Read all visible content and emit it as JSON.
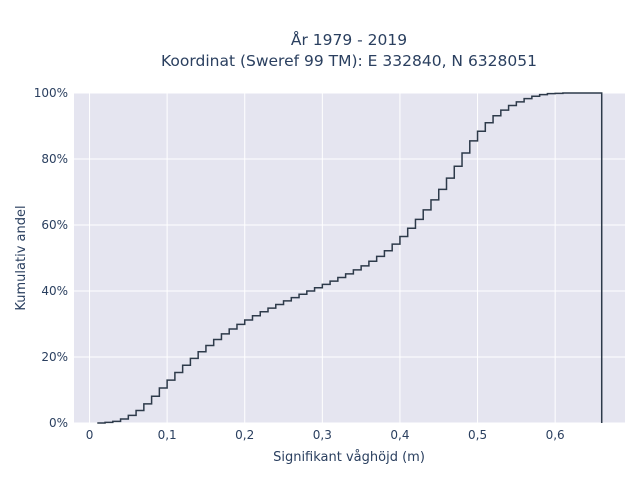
{
  "chart_data": {
    "type": "line",
    "line_shape": "step",
    "title": "År 1979 - 2019",
    "subtitle": "Koordinat (Sweref 99 TM): E 332840, N 6328051",
    "xlabel": "Signifikant våghöjd (m)",
    "ylabel": "Kumulativ andel",
    "xlim": [
      -0.02,
      0.69
    ],
    "ylim": [
      0,
      1.0
    ],
    "x_ticks": [
      0,
      0.1,
      0.2,
      0.3,
      0.4,
      0.5,
      0.6
    ],
    "x_tick_labels": [
      "0",
      "0,1",
      "0,2",
      "0,3",
      "0,4",
      "0,5",
      "0,6"
    ],
    "y_ticks": [
      0,
      0.2,
      0.4,
      0.6,
      0.8,
      1.0
    ],
    "y_tick_labels": [
      "0%",
      "20%",
      "40%",
      "60%",
      "80%",
      "100%"
    ],
    "grid": true,
    "colors": {
      "background": "#e5e5f0",
      "grid": "#ffffff",
      "line": "#2d3a4a",
      "text": "#2a3f5f"
    },
    "series": [
      {
        "x": [
          0.01,
          0.02,
          0.03,
          0.04,
          0.05,
          0.06,
          0.07,
          0.08,
          0.09,
          0.1,
          0.11,
          0.12,
          0.13,
          0.14,
          0.15,
          0.16,
          0.17,
          0.18,
          0.19,
          0.2,
          0.21,
          0.22,
          0.23,
          0.24,
          0.25,
          0.26,
          0.27,
          0.28,
          0.29,
          0.3,
          0.31,
          0.32,
          0.33,
          0.34,
          0.35,
          0.36,
          0.37,
          0.38,
          0.39,
          0.4,
          0.41,
          0.42,
          0.43,
          0.44,
          0.45,
          0.46,
          0.47,
          0.48,
          0.49,
          0.5,
          0.51,
          0.52,
          0.53,
          0.54,
          0.55,
          0.56,
          0.57,
          0.58,
          0.59,
          0.6,
          0.61,
          0.62,
          0.63,
          0.64,
          0.65,
          0.66
        ],
        "y": [
          0.0,
          0.002,
          0.005,
          0.012,
          0.023,
          0.038,
          0.058,
          0.081,
          0.106,
          0.13,
          0.153,
          0.175,
          0.196,
          0.216,
          0.235,
          0.253,
          0.27,
          0.285,
          0.299,
          0.312,
          0.325,
          0.337,
          0.348,
          0.359,
          0.37,
          0.38,
          0.39,
          0.4,
          0.41,
          0.42,
          0.43,
          0.441,
          0.452,
          0.464,
          0.476,
          0.49,
          0.505,
          0.522,
          0.542,
          0.565,
          0.59,
          0.617,
          0.646,
          0.676,
          0.708,
          0.742,
          0.778,
          0.818,
          0.855,
          0.884,
          0.91,
          0.931,
          0.948,
          0.962,
          0.973,
          0.983,
          0.99,
          0.995,
          0.998,
          0.999,
          1.0,
          1.0,
          1.0,
          1.0,
          1.0,
          1.0
        ],
        "end_drop_to_zero": true
      }
    ]
  }
}
